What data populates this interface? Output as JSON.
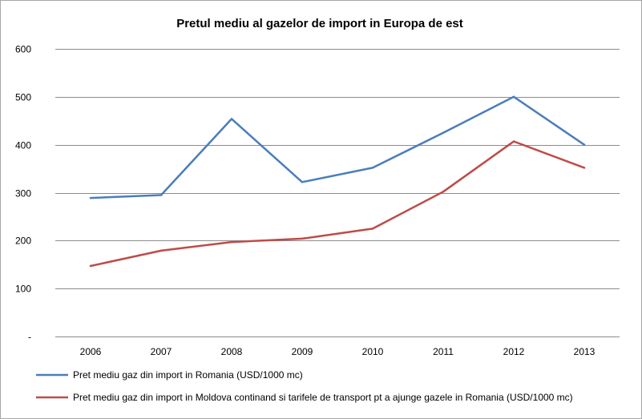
{
  "chart_data": {
    "type": "line",
    "title": "Pretul mediu al gazelor de import in Europa de est",
    "xlabel": "",
    "ylabel": "",
    "categories": [
      "2006",
      "2007",
      "2008",
      "2009",
      "2010",
      "2011",
      "2012",
      "2013"
    ],
    "ylim": [
      0,
      600
    ],
    "yticks": [
      {
        "value": 0,
        "label": "-"
      },
      {
        "value": 100,
        "label": "100"
      },
      {
        "value": 200,
        "label": "200"
      },
      {
        "value": 300,
        "label": "300"
      },
      {
        "value": 400,
        "label": "400"
      },
      {
        "value": 500,
        "label": "500"
      },
      {
        "value": 600,
        "label": "600"
      }
    ],
    "grid": true,
    "legend_position": "bottom",
    "series": [
      {
        "name": "Pret mediu gaz din import in Romania (USD/1000 mc)",
        "color": "#4a7ebb",
        "values": [
          289,
          295,
          454,
          322,
          352,
          425,
          500,
          400
        ]
      },
      {
        "name": "Pret mediu gaz din import in Moldova continand si tarifele de transport pt a ajunge gazele in Romania (USD/1000 mc)",
        "color": "#be4b48",
        "values": [
          147,
          179,
          197,
          204,
          225,
          302,
          407,
          352
        ]
      }
    ]
  }
}
